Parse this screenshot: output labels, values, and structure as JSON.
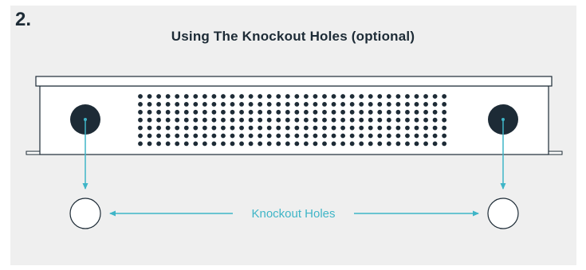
{
  "step": {
    "number": "2."
  },
  "title": "Using The Knockout Holes (optional)",
  "callout": {
    "label": "Knockout Holes"
  },
  "colors": {
    "background": "#efefef",
    "dark": "#1d2b36",
    "accent": "#3fb5c7",
    "device_fill": "#ffffff"
  },
  "device": {
    "vent_grid": {
      "rows": 7,
      "columns": 34
    }
  }
}
